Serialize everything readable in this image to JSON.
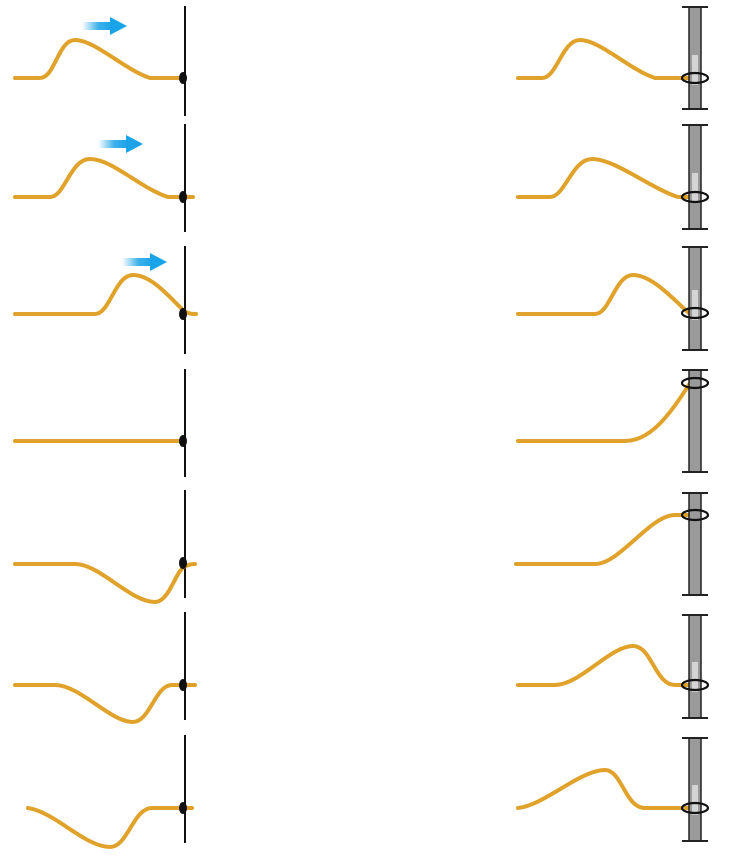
{
  "colors": {
    "rope": "#e0a22a",
    "wall": "#111111",
    "pole_fill": "#9a9a9a",
    "pole_highlight": "#d4d4d4",
    "ring": "#111111",
    "arrow": "#1aa3e8"
  },
  "panels": {
    "left": {
      "description_icon": "fixed-end-wall",
      "frames": [
        {
          "frame": 1,
          "pulse_direction": "right",
          "has_arrow": true
        },
        {
          "frame": 2,
          "pulse_direction": "right",
          "has_arrow": true
        },
        {
          "frame": 3,
          "pulse_direction": "right",
          "has_arrow": true
        },
        {
          "frame": 4,
          "has_arrow": false
        },
        {
          "frame": 5,
          "has_arrow": false
        },
        {
          "frame": 6,
          "has_arrow": false
        },
        {
          "frame": 7,
          "has_arrow": false
        }
      ]
    },
    "right": {
      "description_icon": "free-end-ring-on-pole",
      "frames": [
        {
          "frame": 1
        },
        {
          "frame": 2
        },
        {
          "frame": 3
        },
        {
          "frame": 4
        },
        {
          "frame": 5
        },
        {
          "frame": 6
        },
        {
          "frame": 7
        }
      ]
    }
  },
  "icons": {
    "arrow": "arrow-right-icon",
    "ring": "ring-icon",
    "knot": "knot-icon"
  }
}
